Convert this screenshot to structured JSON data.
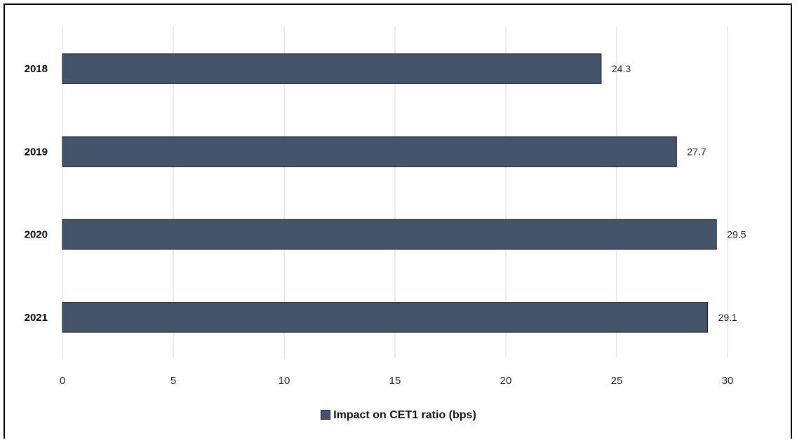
{
  "chart_data": {
    "type": "bar",
    "orientation": "horizontal",
    "categories": [
      "2018",
      "2019",
      "2020",
      "2021"
    ],
    "series": [
      {
        "name": "Impact on CET1 ratio (bps)",
        "values": [
          24.3,
          27.7,
          29.5,
          29.1
        ],
        "color": "#44546a"
      }
    ],
    "data_labels": [
      "24.3",
      "27.7",
      "29.5",
      "29.1"
    ],
    "xlim": [
      0,
      30
    ],
    "x_ticks": [
      0,
      5,
      10,
      15,
      20,
      25,
      30
    ],
    "grid": "vertical",
    "legend_position": "bottom",
    "title": "",
    "xlabel": "",
    "ylabel": ""
  }
}
